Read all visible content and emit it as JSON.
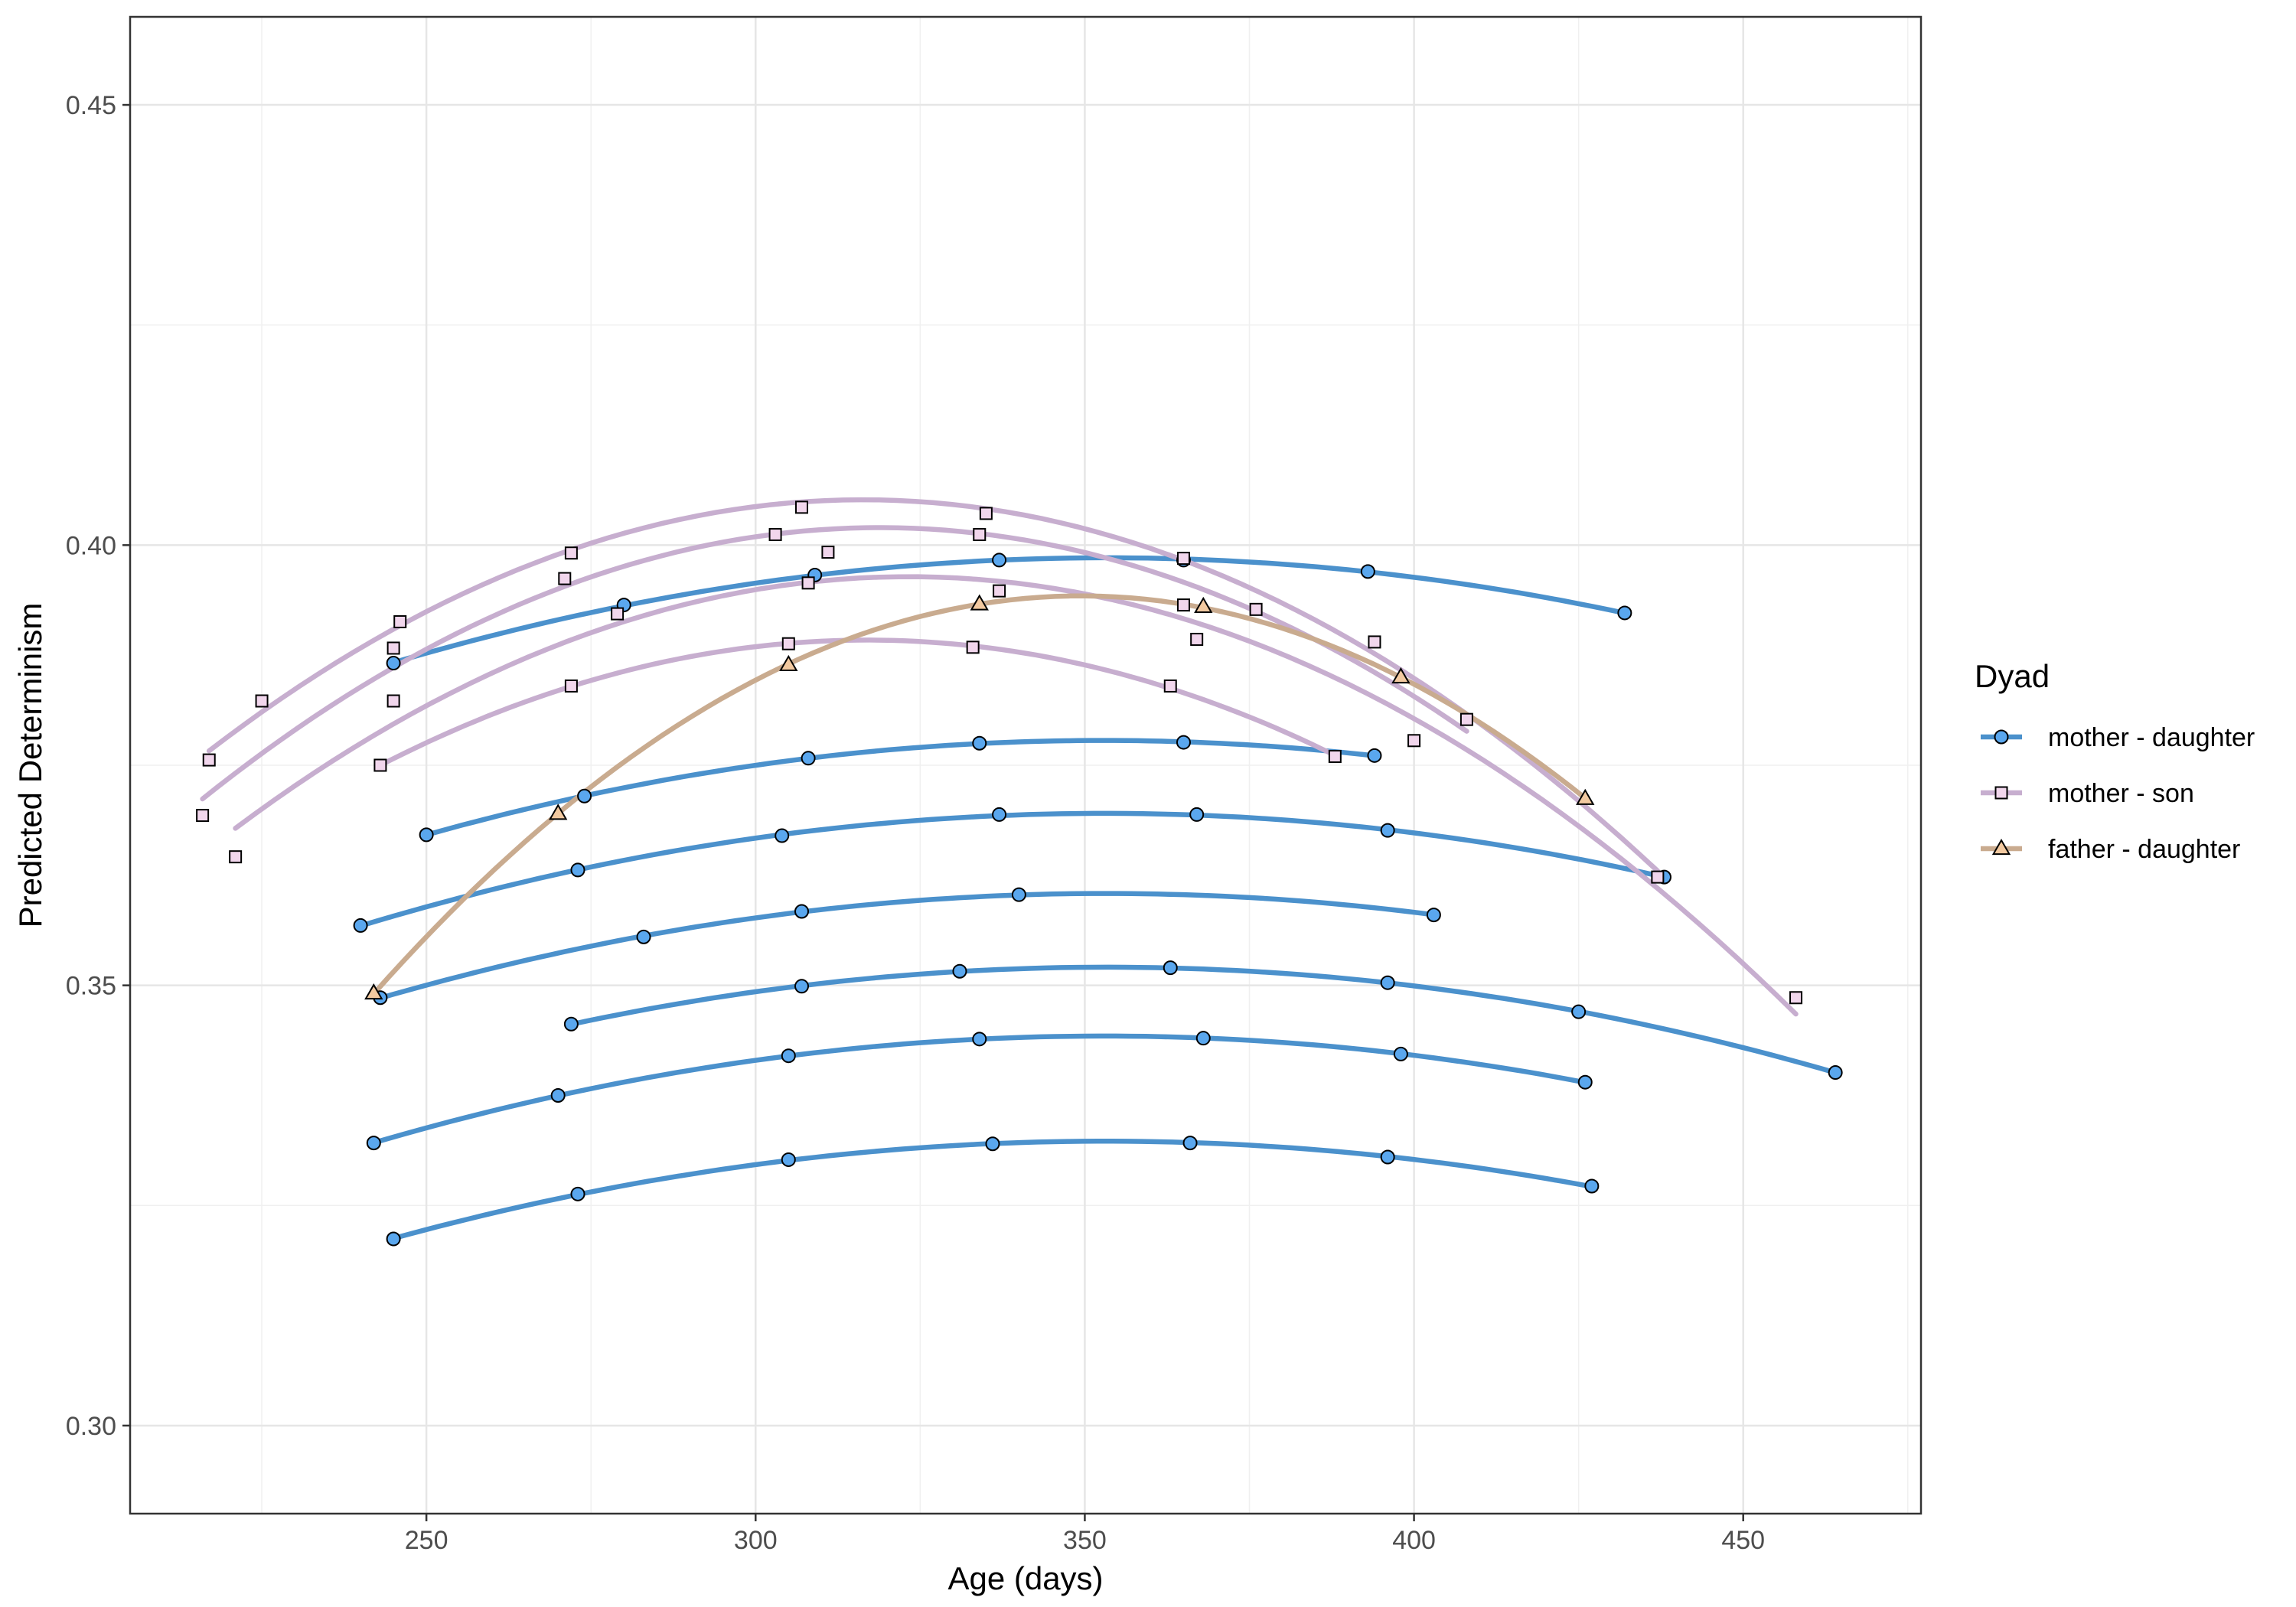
{
  "chart_data": {
    "type": "line",
    "title": "",
    "xlabel": "Age (days)",
    "ylabel": "Predicted Determinism",
    "xlim": [
      205,
      477
    ],
    "ylim": [
      0.29,
      0.46
    ],
    "x_ticks": [
      250,
      300,
      350,
      400,
      450
    ],
    "x_tick_labels": [
      "250",
      "300",
      "350",
      "400",
      "450"
    ],
    "y_ticks": [
      0.3,
      0.35,
      0.4,
      0.45
    ],
    "y_tick_labels": [
      "0.30",
      "0.35",
      "0.40",
      "0.45"
    ],
    "grid": true,
    "legend": {
      "title": "Dyad",
      "placement": "right",
      "entries": [
        "mother - daughter",
        "mother - son",
        "father - daughter"
      ]
    },
    "groups": [
      {
        "name": "mother - daughter",
        "color": "#4b91cc",
        "marker": "circle",
        "fill": "#5aa7ee"
      },
      {
        "name": "mother - son",
        "color": "#c7aecf",
        "marker": "square",
        "fill": "#f1d6ec"
      },
      {
        "name": "father - daughter",
        "color": "#c9ab8f",
        "marker": "triangle",
        "fill": "#f2c9a0"
      }
    ],
    "series": [
      {
        "group": "mother - daughter",
        "points": [
          [
            245,
            0.3866
          ],
          [
            280,
            0.3932
          ],
          [
            309,
            0.3966
          ],
          [
            337,
            0.3983
          ],
          [
            365,
            0.3983
          ],
          [
            393,
            0.397
          ],
          [
            432,
            0.3923
          ]
        ]
      },
      {
        "group": "mother - daughter",
        "points": [
          [
            250,
            0.3671
          ],
          [
            274,
            0.3715
          ],
          [
            308,
            0.3758
          ],
          [
            334,
            0.3775
          ],
          [
            365,
            0.3776
          ],
          [
            394,
            0.3761
          ]
        ]
      },
      {
        "group": "mother - daughter",
        "points": [
          [
            240,
            0.3568
          ],
          [
            273,
            0.3631
          ],
          [
            304,
            0.367
          ],
          [
            337,
            0.3694
          ],
          [
            367,
            0.3694
          ],
          [
            396,
            0.3676
          ],
          [
            438,
            0.3623
          ]
        ]
      },
      {
        "group": "mother - daughter",
        "points": [
          [
            243,
            0.3486
          ],
          [
            283,
            0.3555
          ],
          [
            307,
            0.3584
          ],
          [
            340,
            0.3603
          ],
          [
            403,
            0.358
          ]
        ]
      },
      {
        "group": "mother - daughter",
        "points": [
          [
            272,
            0.3456
          ],
          [
            307,
            0.3499
          ],
          [
            331,
            0.3516
          ],
          [
            363,
            0.352
          ],
          [
            396,
            0.3503
          ],
          [
            425,
            0.347
          ],
          [
            464,
            0.3401
          ]
        ]
      },
      {
        "group": "mother - daughter",
        "points": [
          [
            242,
            0.3321
          ],
          [
            270,
            0.3375
          ],
          [
            305,
            0.342
          ],
          [
            334,
            0.3439
          ],
          [
            368,
            0.344
          ],
          [
            398,
            0.3422
          ],
          [
            426,
            0.339
          ]
        ]
      },
      {
        "group": "mother - daughter",
        "points": [
          [
            245,
            0.3212
          ],
          [
            273,
            0.3263
          ],
          [
            305,
            0.3302
          ],
          [
            336,
            0.332
          ],
          [
            366,
            0.3321
          ],
          [
            396,
            0.3305
          ],
          [
            427,
            0.3272
          ]
        ]
      },
      {
        "group": "mother - son",
        "points": [
          [
            217,
            0.3756
          ],
          [
            225,
            0.3823
          ],
          [
            246,
            0.3913
          ],
          [
            272,
            0.3991
          ],
          [
            307,
            0.4043
          ],
          [
            335,
            0.4036
          ],
          [
            365,
            0.3985
          ],
          [
            394,
            0.389
          ],
          [
            437,
            0.3623
          ]
        ]
      },
      {
        "group": "mother - son",
        "points": [
          [
            216,
            0.3693
          ],
          [
            245,
            0.3883
          ],
          [
            271,
            0.3962
          ],
          [
            303,
            0.4012
          ],
          [
            334,
            0.4012
          ],
          [
            365,
            0.3932
          ],
          [
            376,
            0.3927
          ],
          [
            408,
            0.3802
          ]
        ]
      },
      {
        "group": "mother - son",
        "points": [
          [
            221,
            0.3646
          ],
          [
            245,
            0.3823
          ],
          [
            279,
            0.3922
          ],
          [
            308,
            0.3957
          ],
          [
            311,
            0.3992
          ],
          [
            337,
            0.3948
          ],
          [
            367,
            0.3893
          ],
          [
            400,
            0.3778
          ],
          [
            458,
            0.3486
          ]
        ]
      },
      {
        "group": "mother - son",
        "points": [
          [
            243,
            0.375
          ],
          [
            272,
            0.384
          ],
          [
            305,
            0.3888
          ],
          [
            333,
            0.3884
          ],
          [
            363,
            0.384
          ],
          [
            388,
            0.376
          ]
        ]
      },
      {
        "group": "father - daughter",
        "points": [
          [
            242,
            0.3491
          ],
          [
            270,
            0.3695
          ],
          [
            305,
            0.3864
          ],
          [
            334,
            0.3933
          ],
          [
            368,
            0.393
          ],
          [
            398,
            0.385
          ],
          [
            426,
            0.3712
          ]
        ]
      }
    ]
  }
}
